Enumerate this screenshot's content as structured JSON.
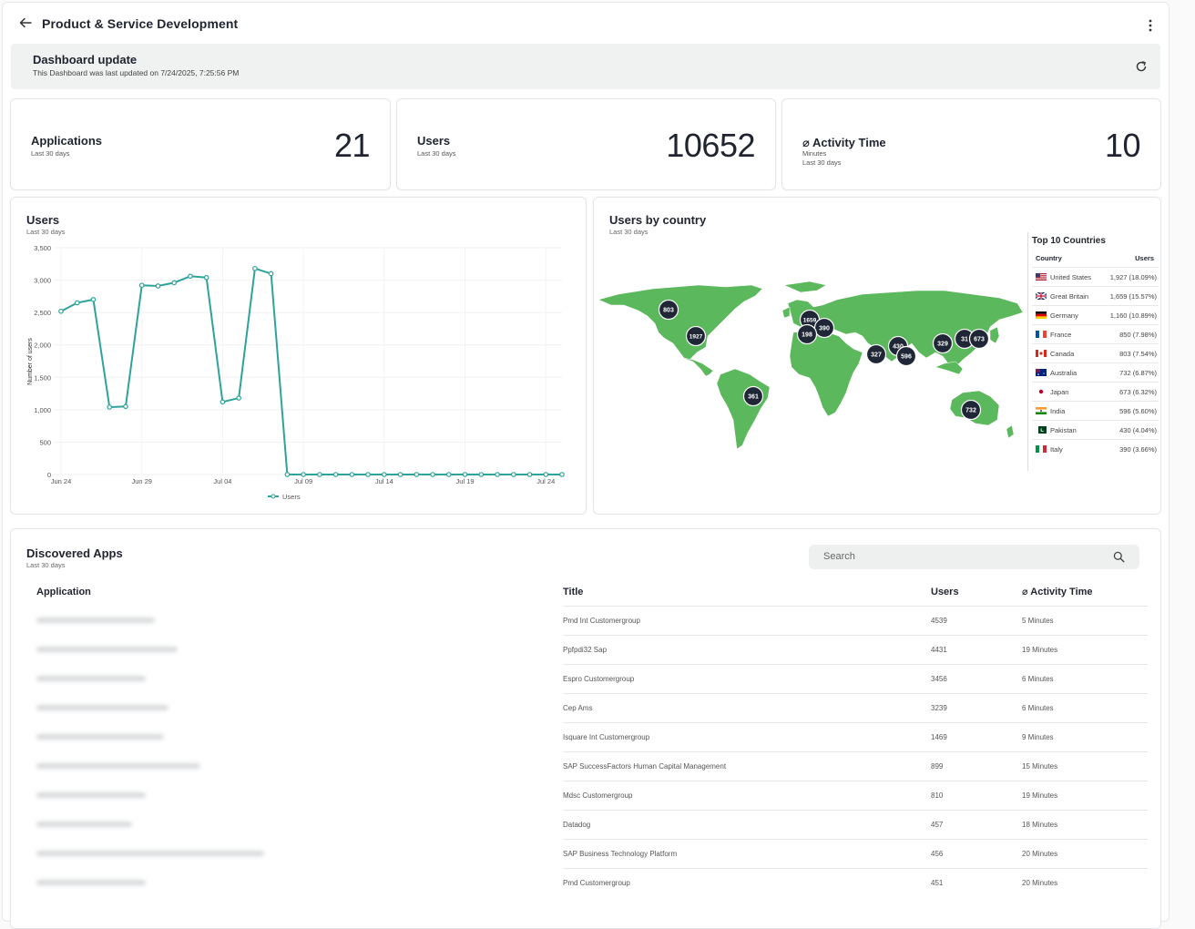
{
  "header": {
    "title": "Product & Service Development"
  },
  "update": {
    "title": "Dashboard update",
    "text": "This Dashboard was last updated on 7/24/2025, 7:25:56 PM"
  },
  "kpis": [
    {
      "label": "Applications",
      "sub": "Last 30 days",
      "value": "21"
    },
    {
      "label": "Users",
      "sub": "Last 30 days",
      "value": "10652"
    },
    {
      "label": "⌀ Activity Time",
      "sub": "Minutes",
      "sub2": "Last 30 days",
      "value": "10"
    }
  ],
  "users_chart": {
    "title": "Users",
    "subtitle": "Last 30 days"
  },
  "chart_data": {
    "type": "line",
    "title": "Users",
    "ylabel": "Number of users",
    "ylim": [
      0,
      3500
    ],
    "yticks": [
      "0",
      "500",
      "1,000",
      "1,500",
      "2,000",
      "2,500",
      "3,000",
      "3,500"
    ],
    "xticks": [
      "Jun 24",
      "Jun 29",
      "Jul 04",
      "Jul 09",
      "Jul 14",
      "Jul 19",
      "Jul 24"
    ],
    "series": [
      {
        "name": "Users",
        "color": "#2ea39a",
        "values": [
          2520,
          2650,
          2700,
          1040,
          1050,
          2920,
          2910,
          2960,
          3060,
          3040,
          1120,
          1180,
          3180,
          3100,
          0,
          0,
          0,
          0,
          0,
          0,
          0,
          0,
          0,
          0,
          0,
          0,
          0,
          0,
          0,
          0,
          0,
          0
        ]
      }
    ],
    "grid": true,
    "legend": "bottom"
  },
  "map": {
    "title": "Users by country",
    "subtitle": "Last 30 days",
    "land_color": "#5cb85c",
    "markers": [
      "803",
      "1927",
      "1659",
      "390",
      "198",
      "327",
      "430",
      "596",
      "329",
      "31",
      "673",
      "361",
      "732"
    ]
  },
  "top_countries": {
    "title": "Top 10 Countries",
    "col_country": "Country",
    "col_users": "Users",
    "rows": [
      {
        "flag": "flag-us-icon",
        "country": "United States",
        "users": "1,927 (18.09%)"
      },
      {
        "flag": "flag-gb-icon",
        "country": "Great Britain",
        "users": "1,659 (15.57%)"
      },
      {
        "flag": "flag-de-icon",
        "country": "Germany",
        "users": "1,160 (10.89%)"
      },
      {
        "flag": "flag-fr-icon",
        "country": "France",
        "users": "850 (7.98%)"
      },
      {
        "flag": "flag-ca-icon",
        "country": "Canada",
        "users": "803 (7.54%)"
      },
      {
        "flag": "flag-au-icon",
        "country": "Australia",
        "users": "732 (6.87%)"
      },
      {
        "flag": "flag-jp-icon",
        "country": "Japan",
        "users": "673 (6.32%)"
      },
      {
        "flag": "flag-in-icon",
        "country": "India",
        "users": "596 (5.60%)"
      },
      {
        "flag": "flag-pk-icon",
        "country": "Pakistan",
        "users": "430 (4.04%)"
      },
      {
        "flag": "flag-it-icon",
        "country": "Italy",
        "users": "390 (3.66%)"
      }
    ]
  },
  "apps": {
    "title": "Discovered Apps",
    "subtitle": "Last 30 days",
    "search_placeholder": "Search",
    "columns": [
      "Application",
      "Title",
      "Users",
      "⌀ Activity Time"
    ],
    "rows": [
      {
        "title": "Pmd Int Customergroup",
        "users": "4539",
        "time": "5 Minutes"
      },
      {
        "title": "Ppfpdi32 Sap",
        "users": "4431",
        "time": "19 Minutes"
      },
      {
        "title": "Espro Customergroup",
        "users": "3456",
        "time": "6 Minutes"
      },
      {
        "title": "Cep Ams",
        "users": "3239",
        "time": "6 Minutes"
      },
      {
        "title": "Isquare Int Customergroup",
        "users": "1469",
        "time": "9 Minutes"
      },
      {
        "title": "SAP SuccessFactors Human Capital Management",
        "users": "899",
        "time": "15 Minutes"
      },
      {
        "title": "Mdsc Customergroup",
        "users": "810",
        "time": "19 Minutes"
      },
      {
        "title": "Datadog",
        "users": "457",
        "time": "18 Minutes"
      },
      {
        "title": "SAP Business Technology Platform",
        "users": "456",
        "time": "20 Minutes"
      },
      {
        "title": "Pmd Customergroup",
        "users": "451",
        "time": "20 Minutes"
      }
    ]
  }
}
